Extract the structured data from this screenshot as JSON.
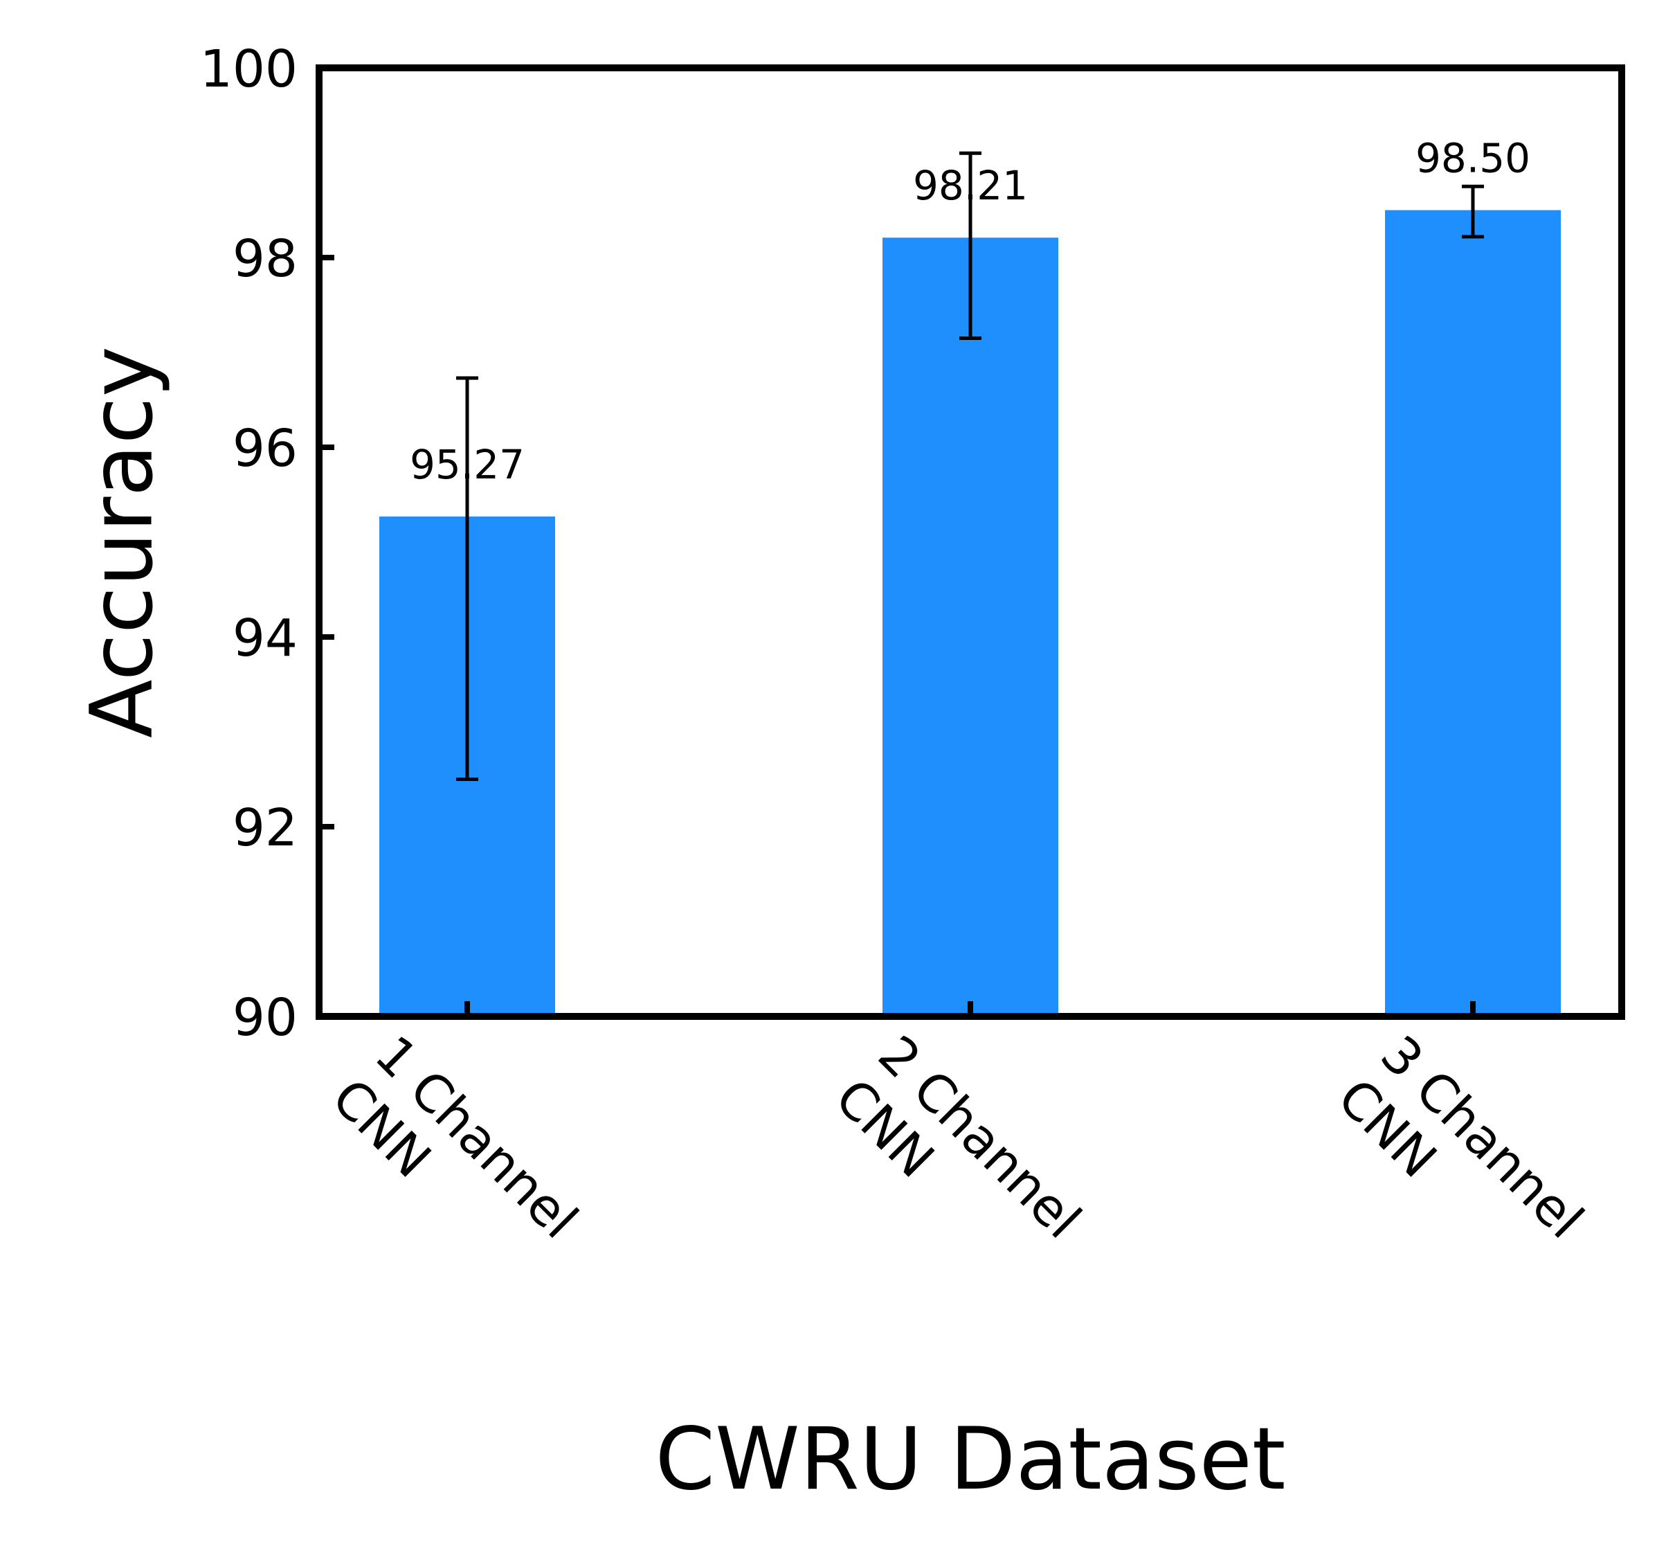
{
  "chart_data": {
    "type": "bar",
    "categories": [
      "1 Channel CNN",
      "2 Channel CNN",
      "3 Channel CNN"
    ],
    "category_lines": [
      [
        "1 Channel",
        "CNN"
      ],
      [
        "2 Channel",
        "CNN"
      ],
      [
        "3 Channel",
        "CNN"
      ]
    ],
    "values": [
      95.27,
      98.21,
      98.5
    ],
    "value_labels": [
      "95.27",
      "98.21",
      "98.50"
    ],
    "error_low": [
      92.5,
      97.15,
      98.22
    ],
    "error_high": [
      96.73,
      99.1,
      98.75
    ],
    "xlabel": "CWRU Dataset",
    "ylabel": "Accuracy",
    "ylim": [
      90,
      100
    ],
    "yticks": [
      90,
      92,
      94,
      96,
      98,
      100
    ],
    "ytick_labels": [
      "90",
      "92",
      "94",
      "96",
      "98",
      "100"
    ],
    "grid": false,
    "bar_color": "#1e8ffd",
    "errorbar_color": "#000000",
    "axis_color": "#000000"
  }
}
